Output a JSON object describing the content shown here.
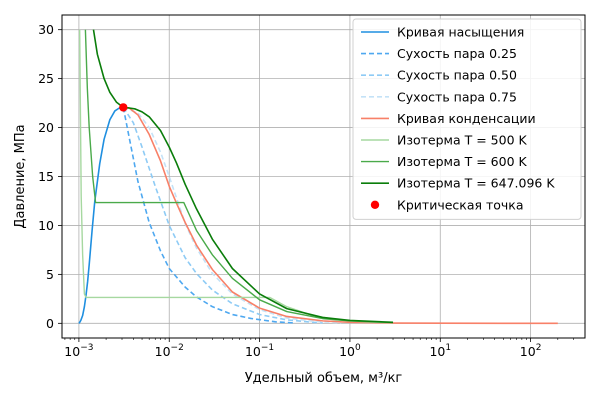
{
  "chart_data": {
    "type": "line",
    "title": "",
    "xlabel": "Удельный объем, м³/кг",
    "ylabel": "Давление, МПа",
    "xscale": "log",
    "xlim": [
      0.00065,
      400
    ],
    "ylim": [
      -1.5,
      31.5
    ],
    "xticks": [
      {
        "value": 0.001,
        "base": "10",
        "exp": "−3"
      },
      {
        "value": 0.01,
        "base": "10",
        "exp": "−2"
      },
      {
        "value": 0.1,
        "base": "10",
        "exp": "−1"
      },
      {
        "value": 1,
        "base": "10",
        "exp": "0"
      },
      {
        "value": 10,
        "base": "10",
        "exp": "1"
      },
      {
        "value": 100,
        "base": "10",
        "exp": "2"
      }
    ],
    "yticks": [
      "0",
      "5",
      "10",
      "15",
      "20",
      "25",
      "30"
    ],
    "grid": true,
    "legend_position": "top-right",
    "critical_point": {
      "name": "Критическая точка",
      "x": 0.0031,
      "y": 22.06,
      "color": "#ff0000"
    },
    "series": [
      {
        "name": "Кривая насыщения",
        "color": "#1f8fe0",
        "style": "solid",
        "width": 1.6,
        "points": [
          [
            0.001,
            0.0
          ],
          [
            0.00102,
            0.1
          ],
          [
            0.00105,
            0.3
          ],
          [
            0.0011,
            0.8
          ],
          [
            0.00115,
            1.7
          ],
          [
            0.0012,
            2.9
          ],
          [
            0.00125,
            4.3
          ],
          [
            0.0013,
            6.0
          ],
          [
            0.0014,
            9.5
          ],
          [
            0.0015,
            12.5
          ],
          [
            0.0017,
            16.3
          ],
          [
            0.0019,
            18.8
          ],
          [
            0.0022,
            20.8
          ],
          [
            0.0025,
            21.7
          ],
          [
            0.0028,
            22.0
          ],
          [
            0.0031,
            22.06
          ]
        ]
      },
      {
        "name": "Сухость пара 0.25",
        "color": "#4ea8f0",
        "style": "dashed",
        "width": 1.6,
        "points": [
          [
            0.0031,
            22.06
          ],
          [
            0.0036,
            19.0
          ],
          [
            0.0045,
            14.5
          ],
          [
            0.006,
            10.3
          ],
          [
            0.008,
            7.4
          ],
          [
            0.01,
            5.6
          ],
          [
            0.015,
            3.7
          ],
          [
            0.02,
            2.7
          ],
          [
            0.03,
            1.7
          ],
          [
            0.05,
            0.9
          ],
          [
            0.08,
            0.5
          ],
          [
            0.15,
            0.15
          ],
          [
            0.25,
            0.03
          ]
        ]
      },
      {
        "name": "Сухость пара 0.50",
        "color": "#8ecbf5",
        "style": "dashed",
        "width": 1.6,
        "points": [
          [
            0.0031,
            22.06
          ],
          [
            0.004,
            20.5
          ],
          [
            0.005,
            18.0
          ],
          [
            0.007,
            14.0
          ],
          [
            0.01,
            10.0
          ],
          [
            0.015,
            6.7
          ],
          [
            0.02,
            5.1
          ],
          [
            0.03,
            3.4
          ],
          [
            0.05,
            2.0
          ],
          [
            0.1,
            0.9
          ],
          [
            0.2,
            0.35
          ],
          [
            0.4,
            0.1
          ],
          [
            0.5,
            0.04
          ]
        ]
      },
      {
        "name": "Сухость пара 0.75",
        "color": "#c4e2f7",
        "style": "dashed",
        "width": 1.6,
        "points": [
          [
            0.0031,
            22.06
          ],
          [
            0.0045,
            21.5
          ],
          [
            0.006,
            20.0
          ],
          [
            0.008,
            17.5
          ],
          [
            0.01,
            15.0
          ],
          [
            0.015,
            10.2
          ],
          [
            0.02,
            7.7
          ],
          [
            0.03,
            5.1
          ],
          [
            0.05,
            3.0
          ],
          [
            0.1,
            1.4
          ],
          [
            0.2,
            0.55
          ],
          [
            0.4,
            0.2
          ],
          [
            0.8,
            0.06
          ]
        ]
      },
      {
        "name": "Кривая конденсации",
        "color": "#f88068",
        "style": "solid",
        "width": 1.6,
        "points": [
          [
            0.0031,
            22.06
          ],
          [
            0.0036,
            22.0
          ],
          [
            0.0045,
            21.3
          ],
          [
            0.006,
            19.3
          ],
          [
            0.008,
            16.6
          ],
          [
            0.01,
            14.0
          ],
          [
            0.012,
            12.3
          ],
          [
            0.015,
            10.3
          ],
          [
            0.02,
            8.0
          ],
          [
            0.03,
            5.5
          ],
          [
            0.05,
            3.2
          ],
          [
            0.1,
            1.55
          ],
          [
            0.2,
            0.7
          ],
          [
            0.5,
            0.25
          ],
          [
            1,
            0.1
          ],
          [
            3,
            0.03
          ],
          [
            10,
            0.01
          ],
          [
            50,
            0.002
          ],
          [
            200,
            0.0
          ]
        ]
      },
      {
        "name": "Изотерма T = 500 K",
        "color": "#a6d8a0",
        "style": "solid",
        "width": 1.4,
        "points": [
          [
            0.00102,
            30
          ],
          [
            0.00106,
            13
          ],
          [
            0.0011,
            7
          ],
          [
            0.00115,
            3
          ],
          [
            0.0012,
            2.64
          ],
          [
            0.13,
            2.64
          ],
          [
            0.2,
            1.7
          ],
          [
            0.4,
            0.75
          ],
          [
            0.8,
            0.32
          ],
          [
            1.5,
            0.14
          ],
          [
            3,
            0.06
          ]
        ]
      },
      {
        "name": "Изотерма T = 600 K",
        "color": "#4aaa4a",
        "style": "solid",
        "width": 1.4,
        "points": [
          [
            0.00118,
            30
          ],
          [
            0.00124,
            24
          ],
          [
            0.0013,
            20
          ],
          [
            0.00142,
            15
          ],
          [
            0.00153,
            12.34
          ],
          [
            0.0145,
            12.34
          ],
          [
            0.02,
            9.5
          ],
          [
            0.03,
            7.0
          ],
          [
            0.05,
            4.6
          ],
          [
            0.1,
            2.4
          ],
          [
            0.2,
            1.2
          ],
          [
            0.5,
            0.48
          ],
          [
            1,
            0.24
          ],
          [
            3,
            0.08
          ]
        ]
      },
      {
        "name": "Изотерма T = 647.096 K",
        "color": "#0a7d0a",
        "style": "solid",
        "width": 1.6,
        "points": [
          [
            0.00145,
            30
          ],
          [
            0.0016,
            27.5
          ],
          [
            0.0019,
            25.0
          ],
          [
            0.0022,
            23.6
          ],
          [
            0.0026,
            22.6
          ],
          [
            0.0031,
            22.06
          ],
          [
            0.0036,
            22.0
          ],
          [
            0.0042,
            21.9
          ],
          [
            0.005,
            21.6
          ],
          [
            0.006,
            21.1
          ],
          [
            0.008,
            19.7
          ],
          [
            0.01,
            18.0
          ],
          [
            0.012,
            16.4
          ],
          [
            0.015,
            14.2
          ],
          [
            0.02,
            11.7
          ],
          [
            0.03,
            8.6
          ],
          [
            0.05,
            5.6
          ],
          [
            0.1,
            3.0
          ],
          [
            0.2,
            1.5
          ],
          [
            0.5,
            0.6
          ],
          [
            1,
            0.3
          ],
          [
            3,
            0.1
          ]
        ]
      }
    ]
  }
}
